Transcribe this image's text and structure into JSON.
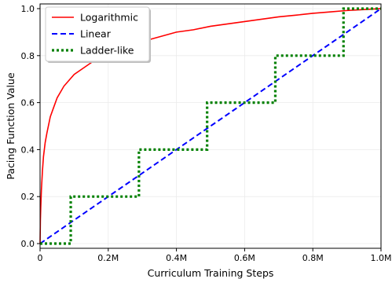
{
  "chart_data": {
    "type": "line",
    "xlabel": "Curriculum Training Steps",
    "ylabel": "Pacing Function Value",
    "xlim": [
      0,
      1000000
    ],
    "ylim": [
      -0.02,
      1.02
    ],
    "grid": true,
    "legend_position": "top-left",
    "x_ticks": [
      0,
      200000,
      400000,
      600000,
      800000,
      1000000
    ],
    "x_tick_labels": [
      "0",
      "0.2M",
      "0.4M",
      "0.6M",
      "0.8M",
      "1.0M"
    ],
    "y_ticks": [
      0,
      0.2,
      0.4,
      0.6,
      0.8,
      1.0
    ],
    "y_tick_labels": [
      "0.0",
      "0.2",
      "0.4",
      "0.6",
      "0.8",
      "1.0"
    ],
    "series": [
      {
        "name": "Logarithmic",
        "color": "#ff0000",
        "style": "solid",
        "x": [
          0,
          1000,
          2000,
          4000,
          7000,
          10000,
          15000,
          20000,
          30000,
          40000,
          50000,
          70000,
          100000,
          130000,
          160000,
          200000,
          250000,
          300000,
          350000,
          400000,
          450000,
          500000,
          550000,
          600000,
          650000,
          700000,
          750000,
          800000,
          850000,
          900000,
          950000,
          1000000
        ],
        "y": [
          0.0,
          0.1,
          0.15,
          0.23,
          0.31,
          0.37,
          0.43,
          0.47,
          0.54,
          0.58,
          0.62,
          0.67,
          0.72,
          0.75,
          0.78,
          0.81,
          0.84,
          0.86,
          0.88,
          0.9,
          0.91,
          0.925,
          0.935,
          0.945,
          0.955,
          0.965,
          0.972,
          0.98,
          0.986,
          0.992,
          0.996,
          1.0
        ]
      },
      {
        "name": "Linear",
        "color": "#0000ff",
        "style": "dashed",
        "x": [
          0,
          1000000
        ],
        "y": [
          0.0,
          1.0
        ]
      },
      {
        "name": "Ladder-like",
        "color": "#008000",
        "style": "dotted",
        "x": [
          0,
          90000,
          90000,
          290000,
          290000,
          490000,
          490000,
          690000,
          690000,
          890000,
          890000,
          1000000
        ],
        "y": [
          0.0,
          0.0,
          0.2,
          0.2,
          0.4,
          0.4,
          0.6,
          0.6,
          0.8,
          0.8,
          1.0,
          1.0
        ]
      }
    ]
  }
}
